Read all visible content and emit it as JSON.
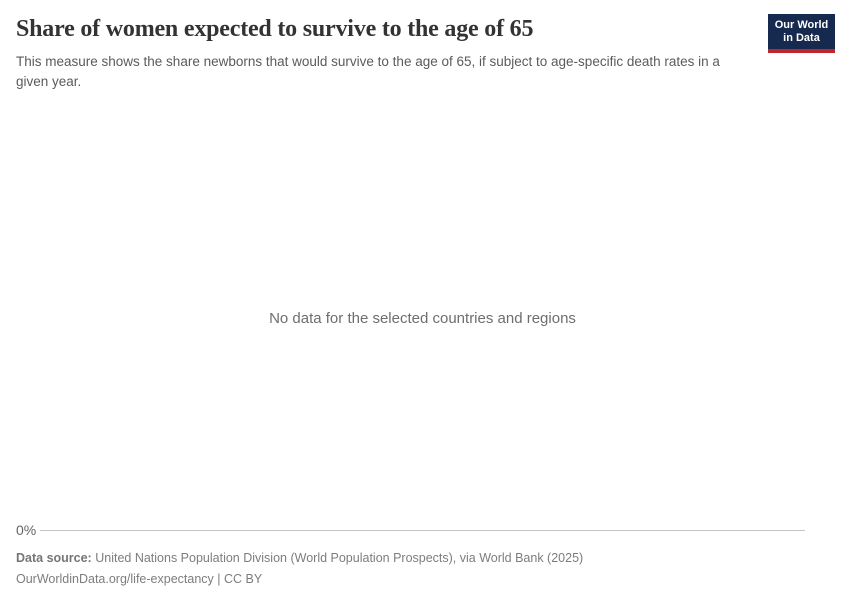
{
  "header": {
    "title": "Share of women expected to survive to the age of 65",
    "subtitle": "This measure shows the share newborns that would survive to the age of 65, if subject to age-specific death rates in a given year.",
    "logo": {
      "line1": "Our World",
      "line2": "in Data",
      "bg_color": "#16294e",
      "accent_color": "#be282d"
    }
  },
  "chart": {
    "empty_message": "No data for the selected countries and regions",
    "axis": {
      "tick_label": "0%"
    }
  },
  "footer": {
    "data_source_label": "Data source:",
    "data_source_value": "United Nations Population Division (World Population Prospects), via World Bank (2025)",
    "link_line": "OurWorldinData.org/life-expectancy | CC BY"
  },
  "colors": {
    "title_text": "#333333",
    "subtitle_text": "#5b5b5b",
    "empty_message_text": "#6e6e6e",
    "axis_line": "#c4c4c4",
    "footer_text": "#7d7d7d"
  },
  "chart_data": {
    "type": "line",
    "title": "Share of women expected to survive to the age of 65",
    "subtitle": "This measure shows the share newborns that would survive to the age of 65, if subject to age-specific death rates in a given year.",
    "series": [],
    "x": [],
    "categories": [],
    "xlabel": "",
    "ylabel": "",
    "visible_yticks": [
      "0%"
    ],
    "empty_state_message": "No data for the selected countries and regions",
    "legend": "none",
    "grid": "single horizontal baseline at 0%"
  }
}
